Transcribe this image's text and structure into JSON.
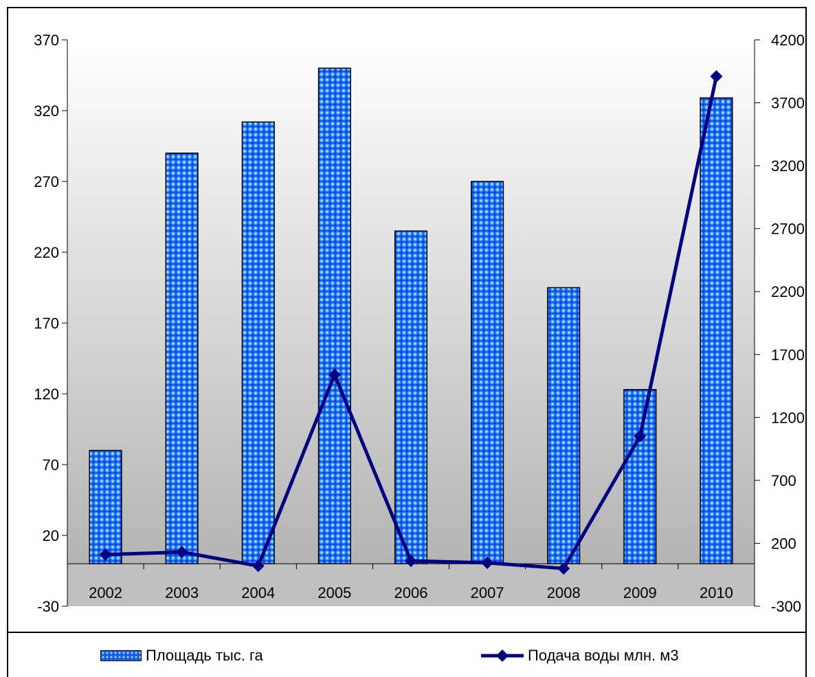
{
  "chart_data": {
    "type": "bar+line",
    "categories": [
      "2002",
      "2003",
      "2004",
      "2005",
      "2006",
      "2007",
      "2008",
      "2009",
      "2010"
    ],
    "series": [
      {
        "name": "Площадь тыс. га",
        "type": "bar",
        "axis": "left",
        "values": [
          80,
          290,
          312,
          350,
          235,
          270,
          195,
          123,
          329
        ]
      },
      {
        "name": "Подача воды млн. м3",
        "type": "line",
        "axis": "right",
        "values": [
          110,
          130,
          20,
          1540,
          60,
          45,
          0,
          1050,
          3910
        ]
      }
    ],
    "y_left": {
      "min": -30,
      "max": 370,
      "ticks": [
        -30,
        20,
        70,
        120,
        170,
        220,
        270,
        320,
        370
      ]
    },
    "y_right": {
      "min": -300,
      "max": 4200,
      "ticks": [
        -300,
        200,
        700,
        1200,
        1700,
        2200,
        2700,
        3200,
        3700,
        4200
      ]
    },
    "colors": {
      "bar": "#1e6fff",
      "bar_dot_light": "#7fd0ff",
      "bar_dot_dark": "#0f48d8",
      "line": "#000080",
      "plot_bg_top": "#ffffff",
      "plot_bg_bottom": "#b0b0b0",
      "band": "#c0c0c0"
    },
    "grid": false,
    "legend": "bottom"
  },
  "legend": {
    "bar_label": "Площадь тыс. га",
    "line_label": "Подача воды млн. м3"
  }
}
